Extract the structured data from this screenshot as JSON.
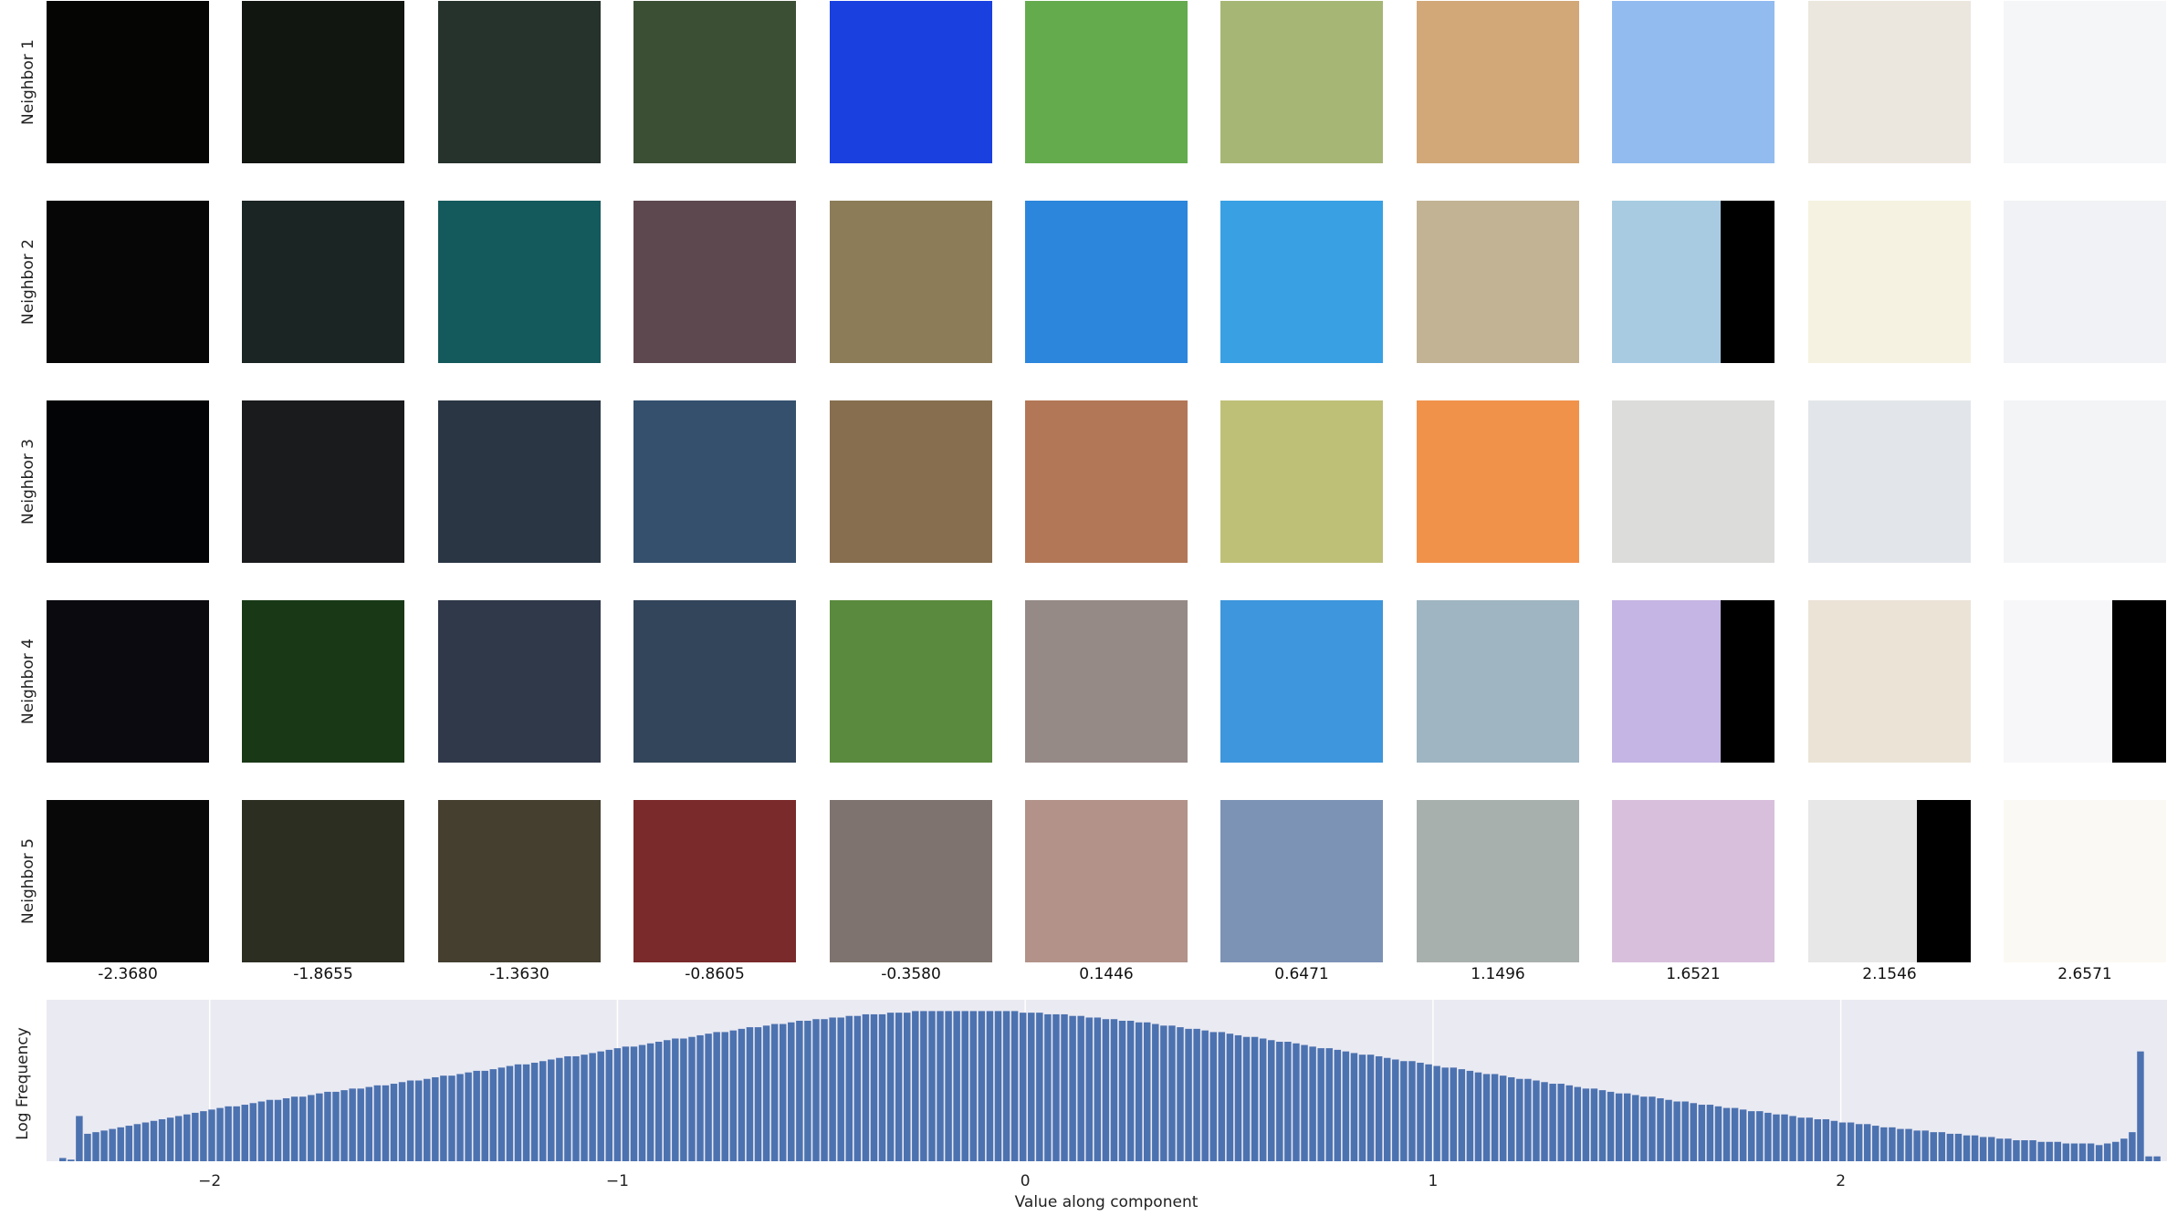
{
  "row_labels": [
    "Neighbor 1",
    "Neighbor 2",
    "Neighbor 3",
    "Neighbor 4",
    "Neighbor 5"
  ],
  "column_values": [
    "-2.3680",
    "-1.8655",
    "-1.3630",
    "-0.8605",
    "-0.3580",
    "0.1446",
    "0.6471",
    "1.1496",
    "1.6521",
    "2.1546",
    "2.6571"
  ],
  "tiles": [
    [
      {
        "color": "#050504"
      },
      {
        "color": "#111611"
      },
      {
        "color": "#26322c"
      },
      {
        "color": "#3b4f35"
      },
      {
        "color": "#1a40e0"
      },
      {
        "color": "#64ab4e"
      },
      {
        "color": "#a6b775"
      },
      {
        "color": "#d2a878"
      },
      {
        "color": "#92bbf0"
      },
      {
        "color": "#ece7de"
      },
      {
        "color": "#f5f6f8"
      }
    ],
    [
      {
        "color": "#060606"
      },
      {
        "color": "#1b2523"
      },
      {
        "color": "#14595c"
      },
      {
        "color": "#5e4850"
      },
      {
        "color": "#8c7d58"
      },
      {
        "color": "#2b86dc"
      },
      {
        "color": "#39a0e4"
      },
      {
        "color": "#c2b395"
      },
      {
        "color": "#a8cbe2",
        "right_black": 0.33
      },
      {
        "color": "#f6f2e1"
      },
      {
        "color": "#f0f2f5"
      }
    ],
    [
      {
        "color": "#030405"
      },
      {
        "color": "#1a1b1d"
      },
      {
        "color": "#2a3644"
      },
      {
        "color": "#34506d"
      },
      {
        "color": "#866e4e"
      },
      {
        "color": "#b27757"
      },
      {
        "color": "#bfc078"
      },
      {
        "color": "#f1924b"
      },
      {
        "color": "#dcdddb"
      },
      {
        "color": "#e2e6ea"
      },
      {
        "color": "#f2f4f6"
      }
    ],
    [
      {
        "color": "#0b0b0f"
      },
      {
        "color": "#193916"
      },
      {
        "color": "#30394a"
      },
      {
        "color": "#33455a"
      },
      {
        "color": "#5a8a3d"
      },
      {
        "color": "#968a86"
      },
      {
        "color": "#3e96dc"
      },
      {
        "color": "#9fb5c2"
      },
      {
        "color": "#c4b5e4",
        "right_black": 0.33
      },
      {
        "color": "#ebe3d6"
      },
      {
        "color": "#f7f7f9",
        "right_black": 0.33
      }
    ],
    [
      {
        "color": "#080808"
      },
      {
        "color": "#2d2e22"
      },
      {
        "color": "#453f30"
      },
      {
        "color": "#7a2a2a"
      },
      {
        "color": "#7f736f"
      },
      {
        "color": "#b29289"
      },
      {
        "color": "#7d93b6"
      },
      {
        "color": "#a8b0ad"
      },
      {
        "color": "#d8c0dd"
      },
      {
        "color": "#e7e7e7",
        "right_black": 0.33
      },
      {
        "color": "#fbf9f3"
      }
    ]
  ],
  "chart_data": {
    "type": "bar",
    "xlabel": "Value along component",
    "ylabel": "Log Frequency",
    "xlim": [
      -2.4,
      2.8
    ],
    "ylim": [
      0,
      1
    ],
    "grid": true,
    "background": "#eaeaf2",
    "bar_color": "#4c72b0",
    "x_ticks": [
      -2,
      -1,
      0,
      1,
      2
    ],
    "x_tick_labels": [
      "−2",
      "−1",
      "0",
      "1",
      "2"
    ],
    "bin_start": -2.37,
    "bin_width": 0.0203,
    "values": [
      0.02,
      0.01,
      0.28,
      0.17,
      0.18,
      0.19,
      0.2,
      0.21,
      0.22,
      0.23,
      0.24,
      0.25,
      0.26,
      0.27,
      0.28,
      0.29,
      0.3,
      0.31,
      0.32,
      0.33,
      0.34,
      0.34,
      0.35,
      0.36,
      0.37,
      0.38,
      0.38,
      0.39,
      0.4,
      0.4,
      0.41,
      0.42,
      0.43,
      0.43,
      0.44,
      0.45,
      0.45,
      0.46,
      0.47,
      0.47,
      0.48,
      0.49,
      0.5,
      0.5,
      0.51,
      0.52,
      0.53,
      0.53,
      0.54,
      0.55,
      0.56,
      0.56,
      0.57,
      0.58,
      0.59,
      0.6,
      0.6,
      0.61,
      0.62,
      0.63,
      0.64,
      0.65,
      0.65,
      0.66,
      0.67,
      0.68,
      0.69,
      0.7,
      0.71,
      0.71,
      0.72,
      0.73,
      0.74,
      0.75,
      0.76,
      0.76,
      0.77,
      0.78,
      0.79,
      0.8,
      0.8,
      0.81,
      0.82,
      0.83,
      0.83,
      0.84,
      0.85,
      0.85,
      0.86,
      0.87,
      0.87,
      0.88,
      0.88,
      0.89,
      0.89,
      0.9,
      0.9,
      0.91,
      0.91,
      0.91,
      0.92,
      0.92,
      0.92,
      0.93,
      0.93,
      0.93,
      0.93,
      0.93,
      0.93,
      0.93,
      0.93,
      0.93,
      0.93,
      0.93,
      0.93,
      0.93,
      0.92,
      0.92,
      0.92,
      0.91,
      0.91,
      0.91,
      0.9,
      0.9,
      0.89,
      0.89,
      0.88,
      0.88,
      0.87,
      0.87,
      0.86,
      0.86,
      0.85,
      0.84,
      0.84,
      0.83,
      0.82,
      0.82,
      0.81,
      0.8,
      0.8,
      0.79,
      0.78,
      0.77,
      0.77,
      0.76,
      0.75,
      0.74,
      0.74,
      0.73,
      0.72,
      0.71,
      0.7,
      0.7,
      0.69,
      0.68,
      0.67,
      0.66,
      0.66,
      0.65,
      0.64,
      0.63,
      0.62,
      0.62,
      0.61,
      0.6,
      0.59,
      0.58,
      0.58,
      0.57,
      0.56,
      0.55,
      0.54,
      0.54,
      0.53,
      0.52,
      0.51,
      0.51,
      0.5,
      0.49,
      0.48,
      0.48,
      0.47,
      0.46,
      0.45,
      0.45,
      0.44,
      0.43,
      0.42,
      0.42,
      0.41,
      0.4,
      0.4,
      0.39,
      0.38,
      0.37,
      0.37,
      0.36,
      0.35,
      0.35,
      0.34,
      0.33,
      0.33,
      0.32,
      0.31,
      0.31,
      0.3,
      0.29,
      0.29,
      0.28,
      0.27,
      0.27,
      0.26,
      0.26,
      0.25,
      0.24,
      0.24,
      0.23,
      0.23,
      0.22,
      0.21,
      0.21,
      0.2,
      0.2,
      0.19,
      0.19,
      0.18,
      0.18,
      0.17,
      0.17,
      0.16,
      0.16,
      0.15,
      0.15,
      0.14,
      0.14,
      0.13,
      0.13,
      0.13,
      0.12,
      0.12,
      0.12,
      0.11,
      0.11,
      0.11,
      0.11,
      0.1,
      0.11,
      0.12,
      0.14,
      0.18,
      0.68,
      0.03,
      0.03
    ]
  }
}
